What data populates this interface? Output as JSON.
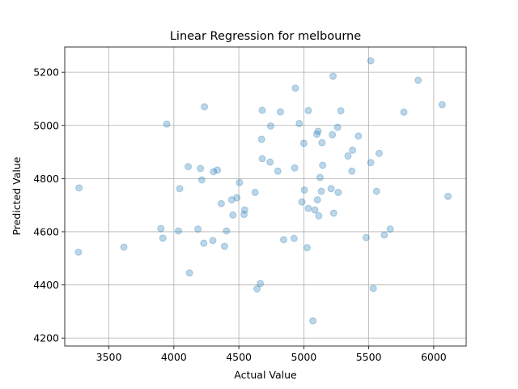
{
  "chart_data": {
    "type": "scatter",
    "title": "Linear Regression for melbourne",
    "xlabel": "Actual Value",
    "ylabel": "Predicted Value",
    "xlim": [
      3160,
      6250
    ],
    "ylim": [
      4170,
      5295
    ],
    "xticks": [
      3500,
      4000,
      4500,
      5000,
      5500,
      6000
    ],
    "yticks": [
      4200,
      4400,
      4600,
      4800,
      5000,
      5200
    ],
    "grid": true,
    "color": "#1f77b4",
    "points": [
      [
        3270,
        4765
      ],
      [
        3265,
        4523
      ],
      [
        3615,
        4542
      ],
      [
        3900,
        4612
      ],
      [
        3915,
        4576
      ],
      [
        3945,
        5005
      ],
      [
        4035,
        4603
      ],
      [
        4045,
        4762
      ],
      [
        4110,
        4845
      ],
      [
        4120,
        4445
      ],
      [
        4185,
        4610
      ],
      [
        4205,
        4838
      ],
      [
        4215,
        4795
      ],
      [
        4230,
        4557
      ],
      [
        4235,
        5070
      ],
      [
        4300,
        4567
      ],
      [
        4305,
        4826
      ],
      [
        4335,
        4832
      ],
      [
        4365,
        4706
      ],
      [
        4390,
        4545
      ],
      [
        4405,
        4603
      ],
      [
        4445,
        4720
      ],
      [
        4455,
        4663
      ],
      [
        4485,
        4728
      ],
      [
        4505,
        4785
      ],
      [
        4540,
        4665
      ],
      [
        4545,
        4682
      ],
      [
        4625,
        4748
      ],
      [
        4640,
        4385
      ],
      [
        4665,
        4405
      ],
      [
        4675,
        4948
      ],
      [
        4680,
        4875
      ],
      [
        4680,
        5057
      ],
      [
        4740,
        4862
      ],
      [
        4745,
        4998
      ],
      [
        4800,
        4828
      ],
      [
        4820,
        5051
      ],
      [
        4845,
        4570
      ],
      [
        4925,
        4575
      ],
      [
        4930,
        4840
      ],
      [
        4935,
        5140
      ],
      [
        4965,
        5007
      ],
      [
        4985,
        4712
      ],
      [
        5000,
        4933
      ],
      [
        5005,
        4757
      ],
      [
        5025,
        4540
      ],
      [
        5035,
        4688
      ],
      [
        5035,
        5056
      ],
      [
        5070,
        4265
      ],
      [
        5085,
        4682
      ],
      [
        5100,
        4967
      ],
      [
        5105,
        4720
      ],
      [
        5110,
        4978
      ],
      [
        5115,
        4660
      ],
      [
        5125,
        4804
      ],
      [
        5135,
        4752
      ],
      [
        5140,
        4935
      ],
      [
        5145,
        4850
      ],
      [
        5210,
        4762
      ],
      [
        5220,
        4965
      ],
      [
        5225,
        5185
      ],
      [
        5230,
        4670
      ],
      [
        5260,
        4993
      ],
      [
        5265,
        4748
      ],
      [
        5285,
        5055
      ],
      [
        5340,
        4885
      ],
      [
        5370,
        4828
      ],
      [
        5375,
        4907
      ],
      [
        5420,
        4960
      ],
      [
        5480,
        4578
      ],
      [
        5515,
        4860
      ],
      [
        5515,
        5243
      ],
      [
        5535,
        4387
      ],
      [
        5560,
        4752
      ],
      [
        5580,
        4895
      ],
      [
        5620,
        4588
      ],
      [
        5665,
        4610
      ],
      [
        5770,
        5050
      ],
      [
        5880,
        5170
      ],
      [
        6065,
        5078
      ],
      [
        6110,
        4733
      ]
    ]
  }
}
